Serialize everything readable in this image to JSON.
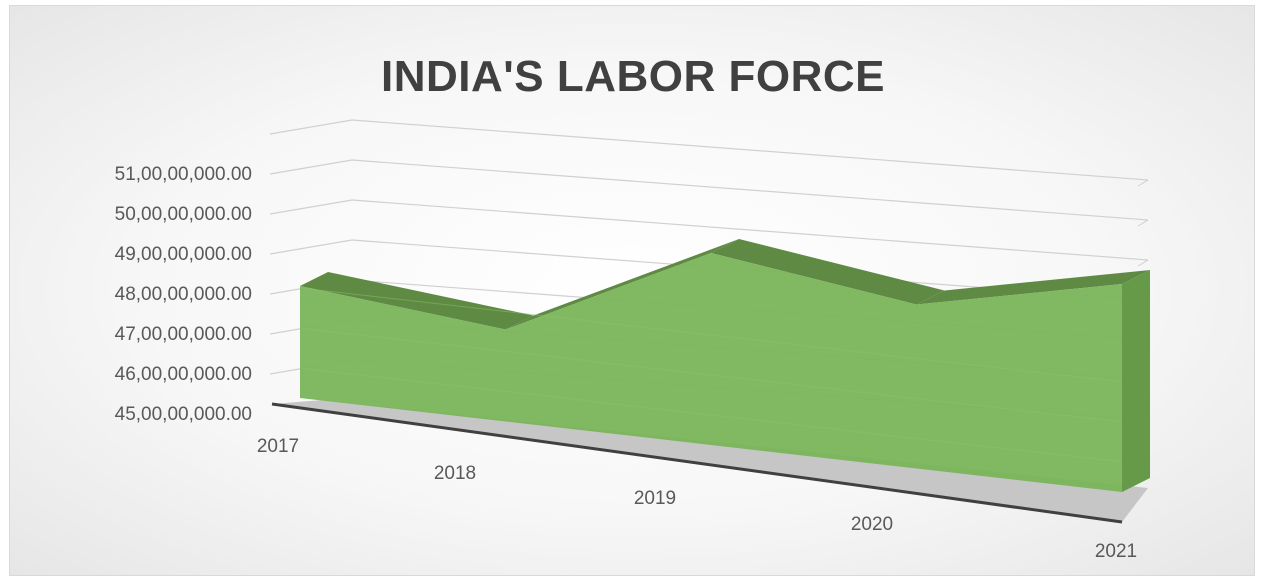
{
  "chart_data": {
    "type": "area",
    "title": "INDIA'S LABOR FORCE",
    "xlabel": "",
    "ylabel": "",
    "categories": [
      "2017",
      "2018",
      "2019",
      "2020",
      "2021"
    ],
    "values": [
      478000000,
      473000000,
      498000000,
      491000000,
      502000000
    ],
    "ylim": [
      450000000,
      510000000
    ],
    "y_ticks": [
      "45,00,00,000.00",
      "46,00,00,000.00",
      "47,00,00,000.00",
      "48,00,00,000.00",
      "49,00,00,000.00",
      "50,00,00,000.00",
      "51,00,00,000.00"
    ],
    "grid": true,
    "legend": "none",
    "three_d": true,
    "colors": {
      "area_front": "#7ab55a",
      "area_top": "#5e8a43",
      "area_side": "#669a48",
      "floor": "#c6c6c6",
      "floor_edge": "#404040",
      "gridline": "#d0d0d0",
      "text": "#595959",
      "title": "#404040"
    }
  }
}
